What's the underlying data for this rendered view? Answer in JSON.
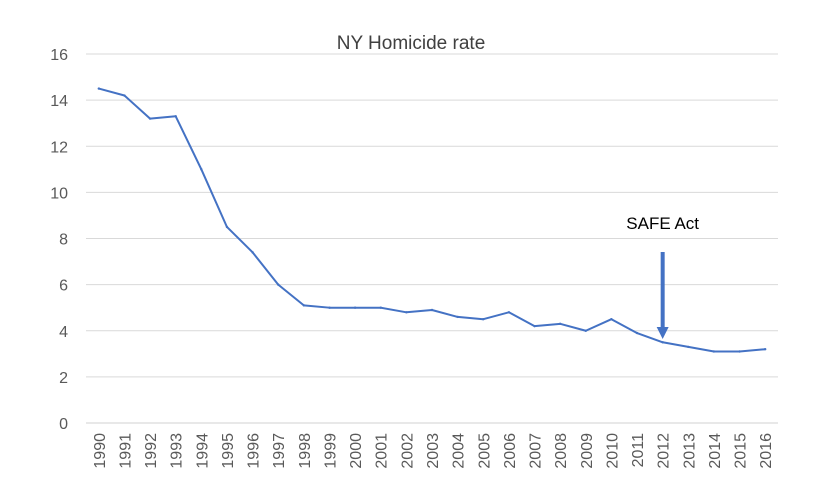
{
  "chart_data": {
    "type": "line",
    "title": "NY Homicide rate",
    "xlabel": "",
    "ylabel": "",
    "ylim": [
      0,
      16
    ],
    "yticks": [
      0,
      2,
      4,
      6,
      8,
      10,
      12,
      14,
      16
    ],
    "grid": true,
    "legend": "none",
    "categories": [
      "1990",
      "1991",
      "1992",
      "1993",
      "1994",
      "1995",
      "1996",
      "1997",
      "1998",
      "1999",
      "2000",
      "2001",
      "2002",
      "2003",
      "2004",
      "2005",
      "2006",
      "2007",
      "2008",
      "2009",
      "2010",
      "2011",
      "2012",
      "2013",
      "2014",
      "2015",
      "2016"
    ],
    "series": [
      {
        "name": "NY Homicide rate",
        "color": "#4472C4",
        "values": [
          14.5,
          14.2,
          13.2,
          13.3,
          11.0,
          8.5,
          7.4,
          6.0,
          5.1,
          5.0,
          5.0,
          5.0,
          4.8,
          4.9,
          4.6,
          4.5,
          4.8,
          4.2,
          4.3,
          4.0,
          4.5,
          3.9,
          3.5,
          3.3,
          3.1,
          3.1,
          3.2
        ]
      }
    ],
    "annotation": {
      "text": "SAFE Act",
      "category": "2012",
      "arrow_color": "#4472C4"
    }
  }
}
